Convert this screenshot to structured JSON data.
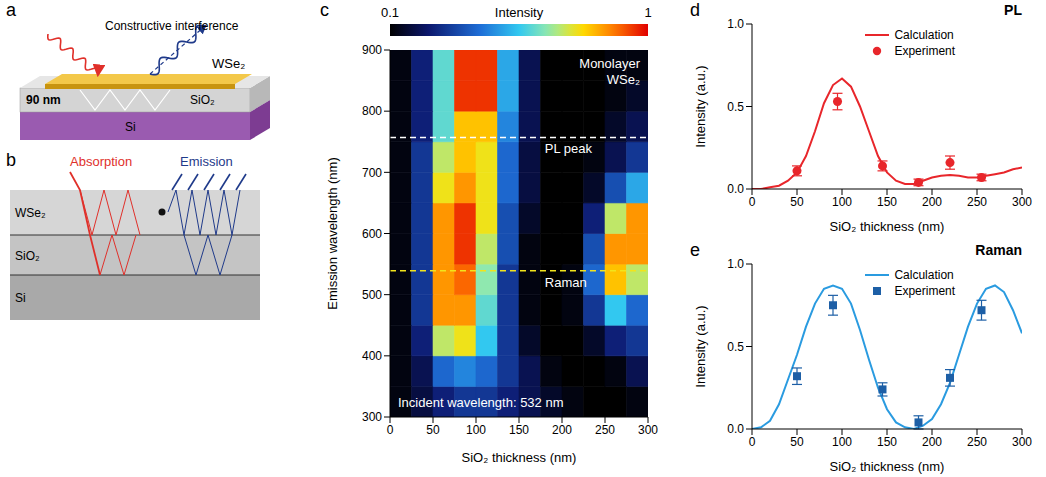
{
  "diagrams": [
    {
      "panel": "a",
      "labels": {
        "interference": "Constructive interference",
        "film": "WSe₂",
        "thickness": "90 nm",
        "oxide": "SiO₂",
        "substrate": "Si"
      }
    },
    {
      "panel": "b",
      "labels": {
        "absorption": "Absorption",
        "emission": "Emission",
        "film": "WSe₂",
        "oxide": "SiO₂",
        "substrate": "Si"
      }
    }
  ],
  "chart_data": [
    {
      "panel": "c",
      "type": "heatmap",
      "xlabel": "SiO₂ thickness (nm)",
      "ylabel": "Emission wavelength (nm)",
      "xlim": [
        0,
        300
      ],
      "ylim": [
        300,
        900
      ],
      "xticks": [
        0,
        50,
        100,
        150,
        200,
        250,
        300
      ],
      "yticks": [
        300,
        400,
        500,
        600,
        700,
        800,
        900
      ],
      "x": [
        12.5,
        37.5,
        62.5,
        87.5,
        112.5,
        137.5,
        162.5,
        187.5,
        212.5,
        237.5,
        262.5,
        287.5
      ],
      "y": [
        325,
        375,
        425,
        475,
        525,
        575,
        625,
        675,
        725,
        775,
        825,
        875
      ],
      "cells": [
        [
          0.12,
          0.18,
          0.25,
          0.3,
          0.3,
          0.25,
          0.2,
          0.15,
          0.12,
          0.1,
          0.1,
          0.12
        ],
        [
          0.12,
          0.2,
          0.4,
          0.45,
          0.4,
          0.3,
          0.2,
          0.12,
          0.1,
          0.1,
          0.12,
          0.2
        ],
        [
          0.12,
          0.25,
          0.7,
          0.75,
          0.55,
          0.3,
          0.15,
          0.1,
          0.1,
          0.15,
          0.25,
          0.3
        ],
        [
          0.12,
          0.3,
          0.85,
          0.85,
          0.6,
          0.3,
          0.12,
          0.1,
          0.12,
          0.3,
          0.55,
          0.4
        ],
        [
          0.12,
          0.3,
          0.85,
          0.9,
          0.65,
          0.3,
          0.12,
          0.1,
          0.12,
          0.4,
          0.8,
          0.7
        ],
        [
          0.12,
          0.3,
          0.85,
          0.95,
          0.7,
          0.35,
          0.12,
          0.1,
          0.1,
          0.35,
          0.85,
          0.85
        ],
        [
          0.12,
          0.3,
          0.85,
          0.95,
          0.75,
          0.35,
          0.15,
          0.1,
          0.1,
          0.25,
          0.7,
          0.85
        ],
        [
          0.12,
          0.3,
          0.75,
          0.85,
          0.75,
          0.4,
          0.18,
          0.1,
          0.1,
          0.15,
          0.35,
          0.5
        ],
        [
          0.12,
          0.3,
          0.7,
          0.8,
          0.75,
          0.4,
          0.18,
          0.1,
          0.1,
          0.12,
          0.2,
          0.3
        ],
        [
          0.12,
          0.25,
          0.6,
          0.8,
          0.8,
          0.45,
          0.2,
          0.1,
          0.1,
          0.1,
          0.15,
          0.2
        ],
        [
          0.12,
          0.25,
          0.6,
          0.95,
          0.95,
          0.5,
          0.2,
          0.1,
          0.1,
          0.1,
          0.12,
          0.15
        ],
        [
          0.12,
          0.25,
          0.6,
          0.95,
          0.95,
          0.5,
          0.2,
          0.1,
          0.1,
          0.1,
          0.12,
          0.12
        ]
      ],
      "colorbar": {
        "label": "Intensity",
        "range": [
          0.1,
          1
        ],
        "ticks": [
          0.1,
          1
        ]
      },
      "lines": [
        {
          "label": "PL peak",
          "y": 757,
          "color": "#ffffff",
          "line_style": "dashed"
        },
        {
          "label": "Raman",
          "y": 539,
          "color": "#f2e41c",
          "line_style": "dashed"
        }
      ],
      "annotations": {
        "sample": [
          "Monolayer",
          "WSe₂"
        ],
        "excitation": "Incident wavelength: 532 nm"
      }
    },
    {
      "panel": "d",
      "type": "line",
      "title": "PL",
      "xlabel": "SiO₂ thickness (nm)",
      "ylabel": "Intensity (a.u.)",
      "xlim": [
        0,
        300
      ],
      "ylim": [
        0,
        1
      ],
      "xticks": [
        0,
        50,
        100,
        150,
        200,
        250,
        300
      ],
      "yticks": [
        {
          "value": 0,
          "label": "0.0"
        },
        {
          "value": 0.5,
          "label": "0.5"
        },
        {
          "value": 1,
          "label": "1.0"
        }
      ],
      "legend": "upper center",
      "series": [
        {
          "name": "Calculation",
          "type": "line",
          "color": "#e8262b",
          "x": [
            0,
            10,
            20,
            30,
            40,
            50,
            60,
            70,
            80,
            90,
            100,
            110,
            120,
            130,
            140,
            150,
            160,
            170,
            180,
            190,
            200,
            210,
            220,
            230,
            240,
            250,
            260,
            270,
            280,
            290,
            300
          ],
          "values": [
            0,
            0,
            0.01,
            0.02,
            0.05,
            0.1,
            0.2,
            0.35,
            0.52,
            0.63,
            0.67,
            0.62,
            0.5,
            0.35,
            0.2,
            0.1,
            0.05,
            0.03,
            0.03,
            0.05,
            0.07,
            0.08,
            0.085,
            0.08,
            0.07,
            0.07,
            0.08,
            0.09,
            0.1,
            0.12,
            0.13
          ]
        },
        {
          "name": "Experiment",
          "type": "scatter",
          "marker": "circle",
          "color": "#e8262b",
          "x": [
            50,
            95,
            145,
            185,
            220,
            255
          ],
          "values": [
            0.11,
            0.53,
            0.14,
            0.04,
            0.16,
            0.07
          ],
          "errors": [
            0.03,
            0.05,
            0.03,
            0.02,
            0.04,
            0.02
          ]
        }
      ]
    },
    {
      "panel": "e",
      "type": "line",
      "title": "Raman",
      "xlabel": "SiO₂ thickness (nm)",
      "ylabel": "Intensity (a.u.)",
      "xlim": [
        0,
        300
      ],
      "ylim": [
        0,
        1
      ],
      "xticks": [
        0,
        50,
        100,
        150,
        200,
        250,
        300
      ],
      "yticks": [
        {
          "value": 0,
          "label": "0.0"
        },
        {
          "value": 0.5,
          "label": "0.5"
        },
        {
          "value": 1,
          "label": "1.0"
        }
      ],
      "legend": "upper center",
      "series": [
        {
          "name": "Calculation",
          "type": "line",
          "color": "#2a9be0",
          "x": [
            0,
            10,
            20,
            30,
            40,
            50,
            60,
            70,
            80,
            90,
            100,
            110,
            120,
            130,
            140,
            150,
            160,
            170,
            180,
            190,
            200,
            210,
            220,
            230,
            240,
            250,
            260,
            270,
            280,
            290,
            300
          ],
          "values": [
            0,
            0.01,
            0.05,
            0.15,
            0.3,
            0.45,
            0.62,
            0.76,
            0.85,
            0.87,
            0.85,
            0.76,
            0.6,
            0.42,
            0.25,
            0.12,
            0.04,
            0.01,
            0,
            0.02,
            0.06,
            0.15,
            0.28,
            0.45,
            0.62,
            0.76,
            0.85,
            0.87,
            0.83,
            0.72,
            0.58
          ]
        },
        {
          "name": "Experiment",
          "type": "scatter",
          "marker": "square",
          "color": "#1d5fa6",
          "x": [
            50,
            90,
            145,
            185,
            220,
            255
          ],
          "values": [
            0.32,
            0.75,
            0.24,
            0.04,
            0.31,
            0.72
          ],
          "errors": [
            0.05,
            0.06,
            0.04,
            0.04,
            0.05,
            0.06
          ]
        }
      ]
    }
  ]
}
